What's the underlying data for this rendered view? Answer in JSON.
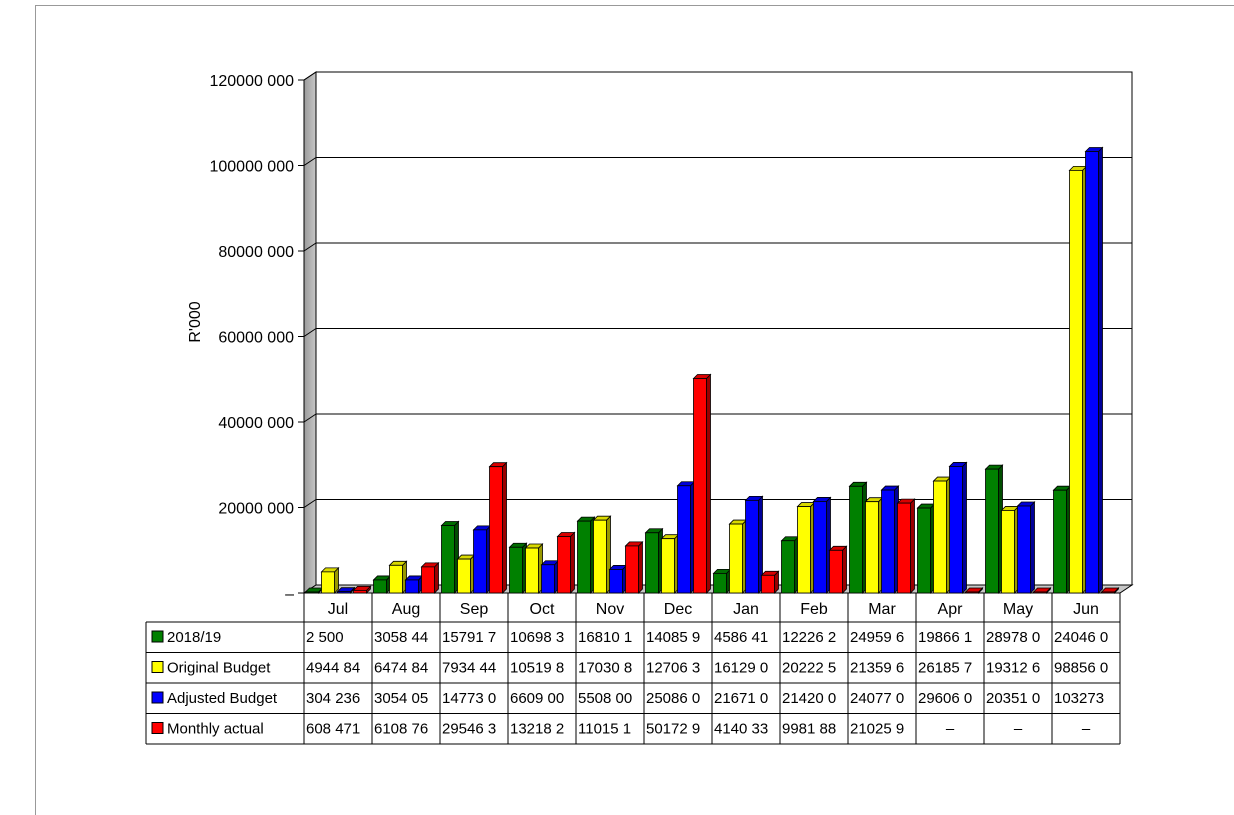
{
  "chart_data": {
    "type": "bar",
    "title": "",
    "ylabel": "R'000",
    "xlabel": "",
    "ylim": [
      0,
      120000000
    ],
    "ytick_labels": [
      "–",
      "20000 000",
      "40000 000",
      "60000 000",
      "80000 000",
      "100000 000",
      "120000 000"
    ],
    "ytick_values": [
      0,
      20000000,
      40000000,
      60000000,
      80000000,
      100000000,
      120000000
    ],
    "grid": true,
    "legend": "data-table",
    "categories": [
      "Jul",
      "Aug",
      "Sep",
      "Oct",
      "Nov",
      "Dec",
      "Jan",
      "Feb",
      "Mar",
      "Apr",
      "May",
      "Jun"
    ],
    "series": [
      {
        "name": "2018/19",
        "color": "#008000",
        "values": [
          2500,
          3058440,
          15791700,
          10698300,
          16810100,
          14085900,
          4586410,
          12226200,
          24959600,
          19866100,
          28978000,
          24046000
        ],
        "labels": [
          "2 500",
          "3058 44",
          "15791 7",
          "10698 3",
          "16810 1",
          "14085 9",
          "4586 41",
          "12226 2",
          "24959 6",
          "19866 1",
          "28978 0",
          "24046 0"
        ]
      },
      {
        "name": "Original Budget",
        "color": "#ffff00",
        "values": [
          4944840,
          6474840,
          7934440,
          10519800,
          17030800,
          12706300,
          16129000,
          20222500,
          21359600,
          26185700,
          19312600,
          98856000
        ],
        "labels": [
          "4944 84",
          "6474 84",
          "7934 44",
          "10519 8",
          "17030 8",
          "12706 3",
          "16129 0",
          "20222 5",
          "21359 6",
          "26185 7",
          "19312 6",
          "98856 0"
        ]
      },
      {
        "name": "Adjusted Budget",
        "color": "#0000ff",
        "values": [
          304236,
          3054050,
          14773000,
          6609000,
          5508000,
          25086000,
          21671000,
          21420000,
          24077000,
          29606000,
          20351000,
          103273000
        ],
        "labels": [
          "304 236",
          "3054 05",
          "14773 0",
          "6609 00",
          "5508 00",
          "25086 0",
          "21671 0",
          "21420 0",
          "24077 0",
          "29606 0",
          "20351 0",
          "103273"
        ]
      },
      {
        "name": "Monthly actual",
        "color": "#ff0000",
        "values": [
          608471,
          6108760,
          29546300,
          13218200,
          11015100,
          50172900,
          4140330,
          9981880,
          21025900,
          0,
          0,
          0
        ],
        "labels": [
          "608 471",
          "6108 76",
          "29546 3",
          "13218 2",
          "11015 1",
          "50172 9",
          "4140 33",
          "9981 88",
          "21025 9",
          "–",
          "–",
          "–"
        ]
      }
    ]
  }
}
